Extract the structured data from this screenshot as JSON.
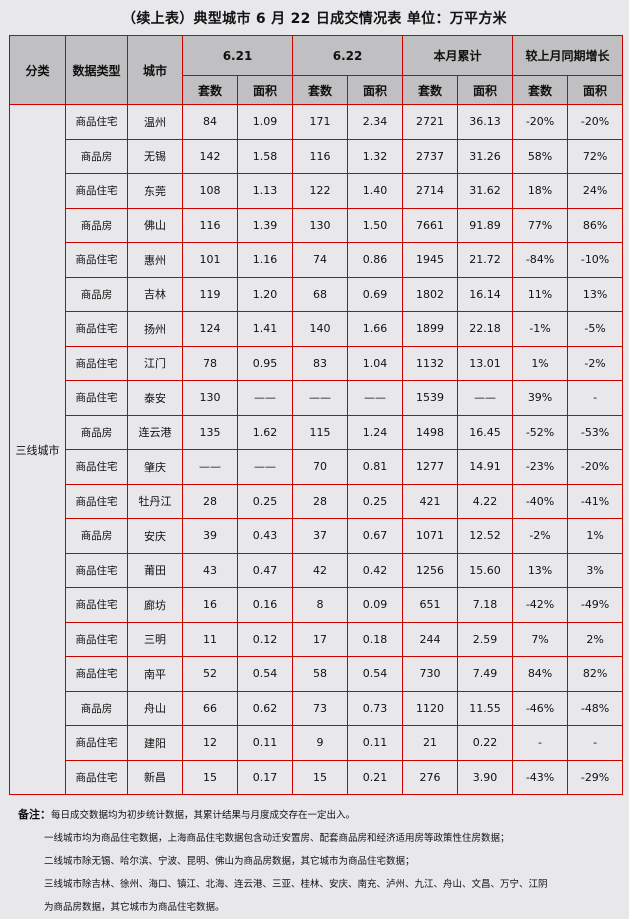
{
  "title": "（续上表）典型城市 6 月 22 日成交情况表  单位：万平方米",
  "headers": {
    "category": "分类",
    "data_type": "数据类型",
    "city": "城市",
    "d1": "6.21",
    "d2": "6.22",
    "month": "本月累计",
    "growth": "较上月同期增长",
    "units": "套数",
    "area": "面积"
  },
  "category_value": "三线城市",
  "rows": [
    [
      "商品住宅",
      "温州",
      "84",
      "1.09",
      "171",
      "2.34",
      "2721",
      "36.13",
      "-20%",
      "-20%"
    ],
    [
      "商品房",
      "无锡",
      "142",
      "1.58",
      "116",
      "1.32",
      "2737",
      "31.26",
      "58%",
      "72%"
    ],
    [
      "商品住宅",
      "东莞",
      "108",
      "1.13",
      "122",
      "1.40",
      "2714",
      "31.62",
      "18%",
      "24%"
    ],
    [
      "商品房",
      "佛山",
      "116",
      "1.39",
      "130",
      "1.50",
      "7661",
      "91.89",
      "77%",
      "86%"
    ],
    [
      "商品住宅",
      "惠州",
      "101",
      "1.16",
      "74",
      "0.86",
      "1945",
      "21.72",
      "-84%",
      "-10%"
    ],
    [
      "商品房",
      "吉林",
      "119",
      "1.20",
      "68",
      "0.69",
      "1802",
      "16.14",
      "11%",
      "13%"
    ],
    [
      "商品住宅",
      "扬州",
      "124",
      "1.41",
      "140",
      "1.66",
      "1899",
      "22.18",
      "-1%",
      "-5%"
    ],
    [
      "商品住宅",
      "江门",
      "78",
      "0.95",
      "83",
      "1.04",
      "1132",
      "13.01",
      "1%",
      "-2%"
    ],
    [
      "商品住宅",
      "泰安",
      "130",
      "——",
      "——",
      "——",
      "1539",
      "——",
      "39%",
      "-"
    ],
    [
      "商品房",
      "连云港",
      "135",
      "1.62",
      "115",
      "1.24",
      "1498",
      "16.45",
      "-52%",
      "-53%"
    ],
    [
      "商品住宅",
      "肇庆",
      "——",
      "——",
      "70",
      "0.81",
      "1277",
      "14.91",
      "-23%",
      "-20%"
    ],
    [
      "商品住宅",
      "牡丹江",
      "28",
      "0.25",
      "28",
      "0.25",
      "421",
      "4.22",
      "-40%",
      "-41%"
    ],
    [
      "商品房",
      "安庆",
      "39",
      "0.43",
      "37",
      "0.67",
      "1071",
      "12.52",
      "-2%",
      "1%"
    ],
    [
      "商品住宅",
      "莆田",
      "43",
      "0.47",
      "42",
      "0.42",
      "1256",
      "15.60",
      "13%",
      "3%"
    ],
    [
      "商品住宅",
      "廊坊",
      "16",
      "0.16",
      "8",
      "0.09",
      "651",
      "7.18",
      "-42%",
      "-49%"
    ],
    [
      "商品住宅",
      "三明",
      "11",
      "0.12",
      "17",
      "0.18",
      "244",
      "2.59",
      "7%",
      "2%"
    ],
    [
      "商品住宅",
      "南平",
      "52",
      "0.54",
      "58",
      "0.54",
      "730",
      "7.49",
      "84%",
      "82%"
    ],
    [
      "商品房",
      "舟山",
      "66",
      "0.62",
      "73",
      "0.73",
      "1120",
      "11.55",
      "-46%",
      "-48%"
    ],
    [
      "商品住宅",
      "建阳",
      "12",
      "0.11",
      "9",
      "0.11",
      "21",
      "0.22",
      "-",
      "-"
    ],
    [
      "商品住宅",
      "新昌",
      "15",
      "0.17",
      "15",
      "0.21",
      "276",
      "3.90",
      "-43%",
      "-29%"
    ]
  ],
  "notes": {
    "label": "备注：",
    "lines": [
      "每日成交数据均为初步统计数据，其累计结果与月度成交存在一定出入。",
      "一线城市均为商品住宅数据，上海商品住宅数据包含动迁安置房、配套商品房和经济适用房等政策性住房数据；",
      "二线城市除无锡、哈尔滨、宁波、昆明、佛山为商品房数据，其它城市为商品住宅数据；",
      "三线城市除吉林、徐州、海口、镇江、北海、连云港、三亚、桂林、安庆、南充、泸州、九江、舟山、文昌、万宁、江阴",
      "为商品房数据，其它城市为商品住宅数据。"
    ]
  },
  "colors": {
    "border": "#cc0000",
    "header_bg": "#c0bfc1",
    "page_bg": "#e8e7ea"
  }
}
